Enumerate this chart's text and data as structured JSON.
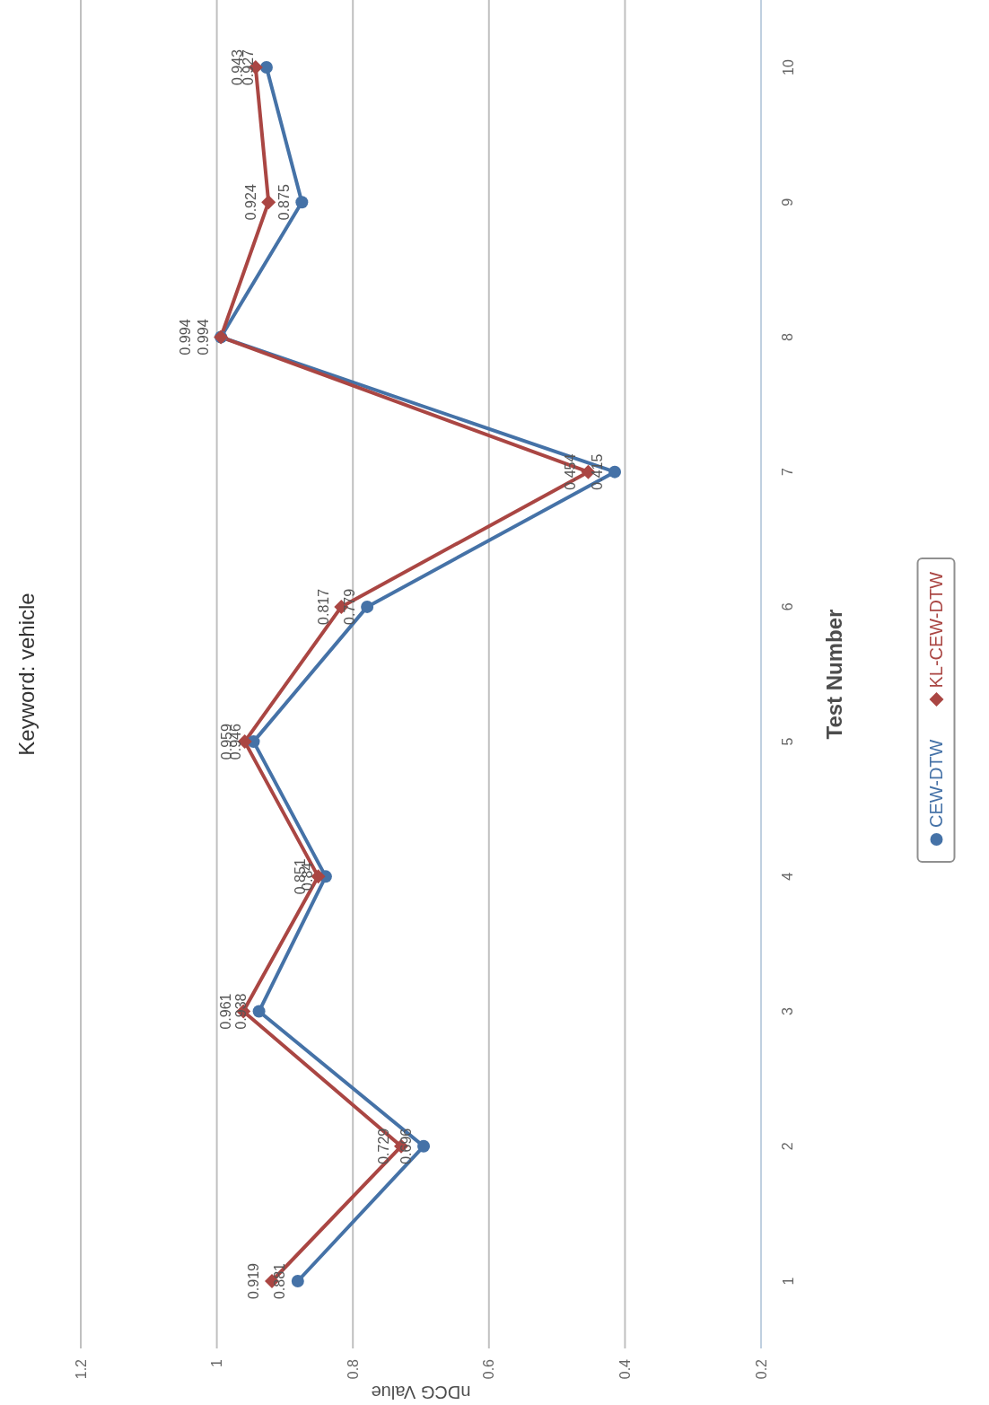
{
  "chart_data": {
    "type": "line",
    "orientation": "horizontal",
    "title": "Keyword: vehicle",
    "xlabel": "nDCG Value",
    "ylabel": "Test Number",
    "categories": [
      "10",
      "9",
      "8",
      "7",
      "6",
      "5",
      "4",
      "3",
      "2",
      "1"
    ],
    "series": [
      {
        "name": "CEW-DTW",
        "color": "#4572a7",
        "marker": "circle",
        "values": [
          0.927,
          0.875,
          0.994,
          0.415,
          0.779,
          0.946,
          0.84,
          0.938,
          0.696,
          0.881
        ]
      },
      {
        "name": "KL-CEW-DTW",
        "color": "#aa4643",
        "marker": "diamond",
        "values": [
          0.943,
          0.924,
          0.994,
          0.454,
          0.817,
          0.959,
          0.851,
          0.961,
          0.729,
          0.919
        ]
      }
    ],
    "xlim": [
      1.2,
      0.2
    ],
    "xticks": [
      1.2,
      1,
      0.8,
      0.6,
      0.4,
      0.2
    ],
    "grid": "x",
    "legend": "right",
    "data_labels": true
  }
}
